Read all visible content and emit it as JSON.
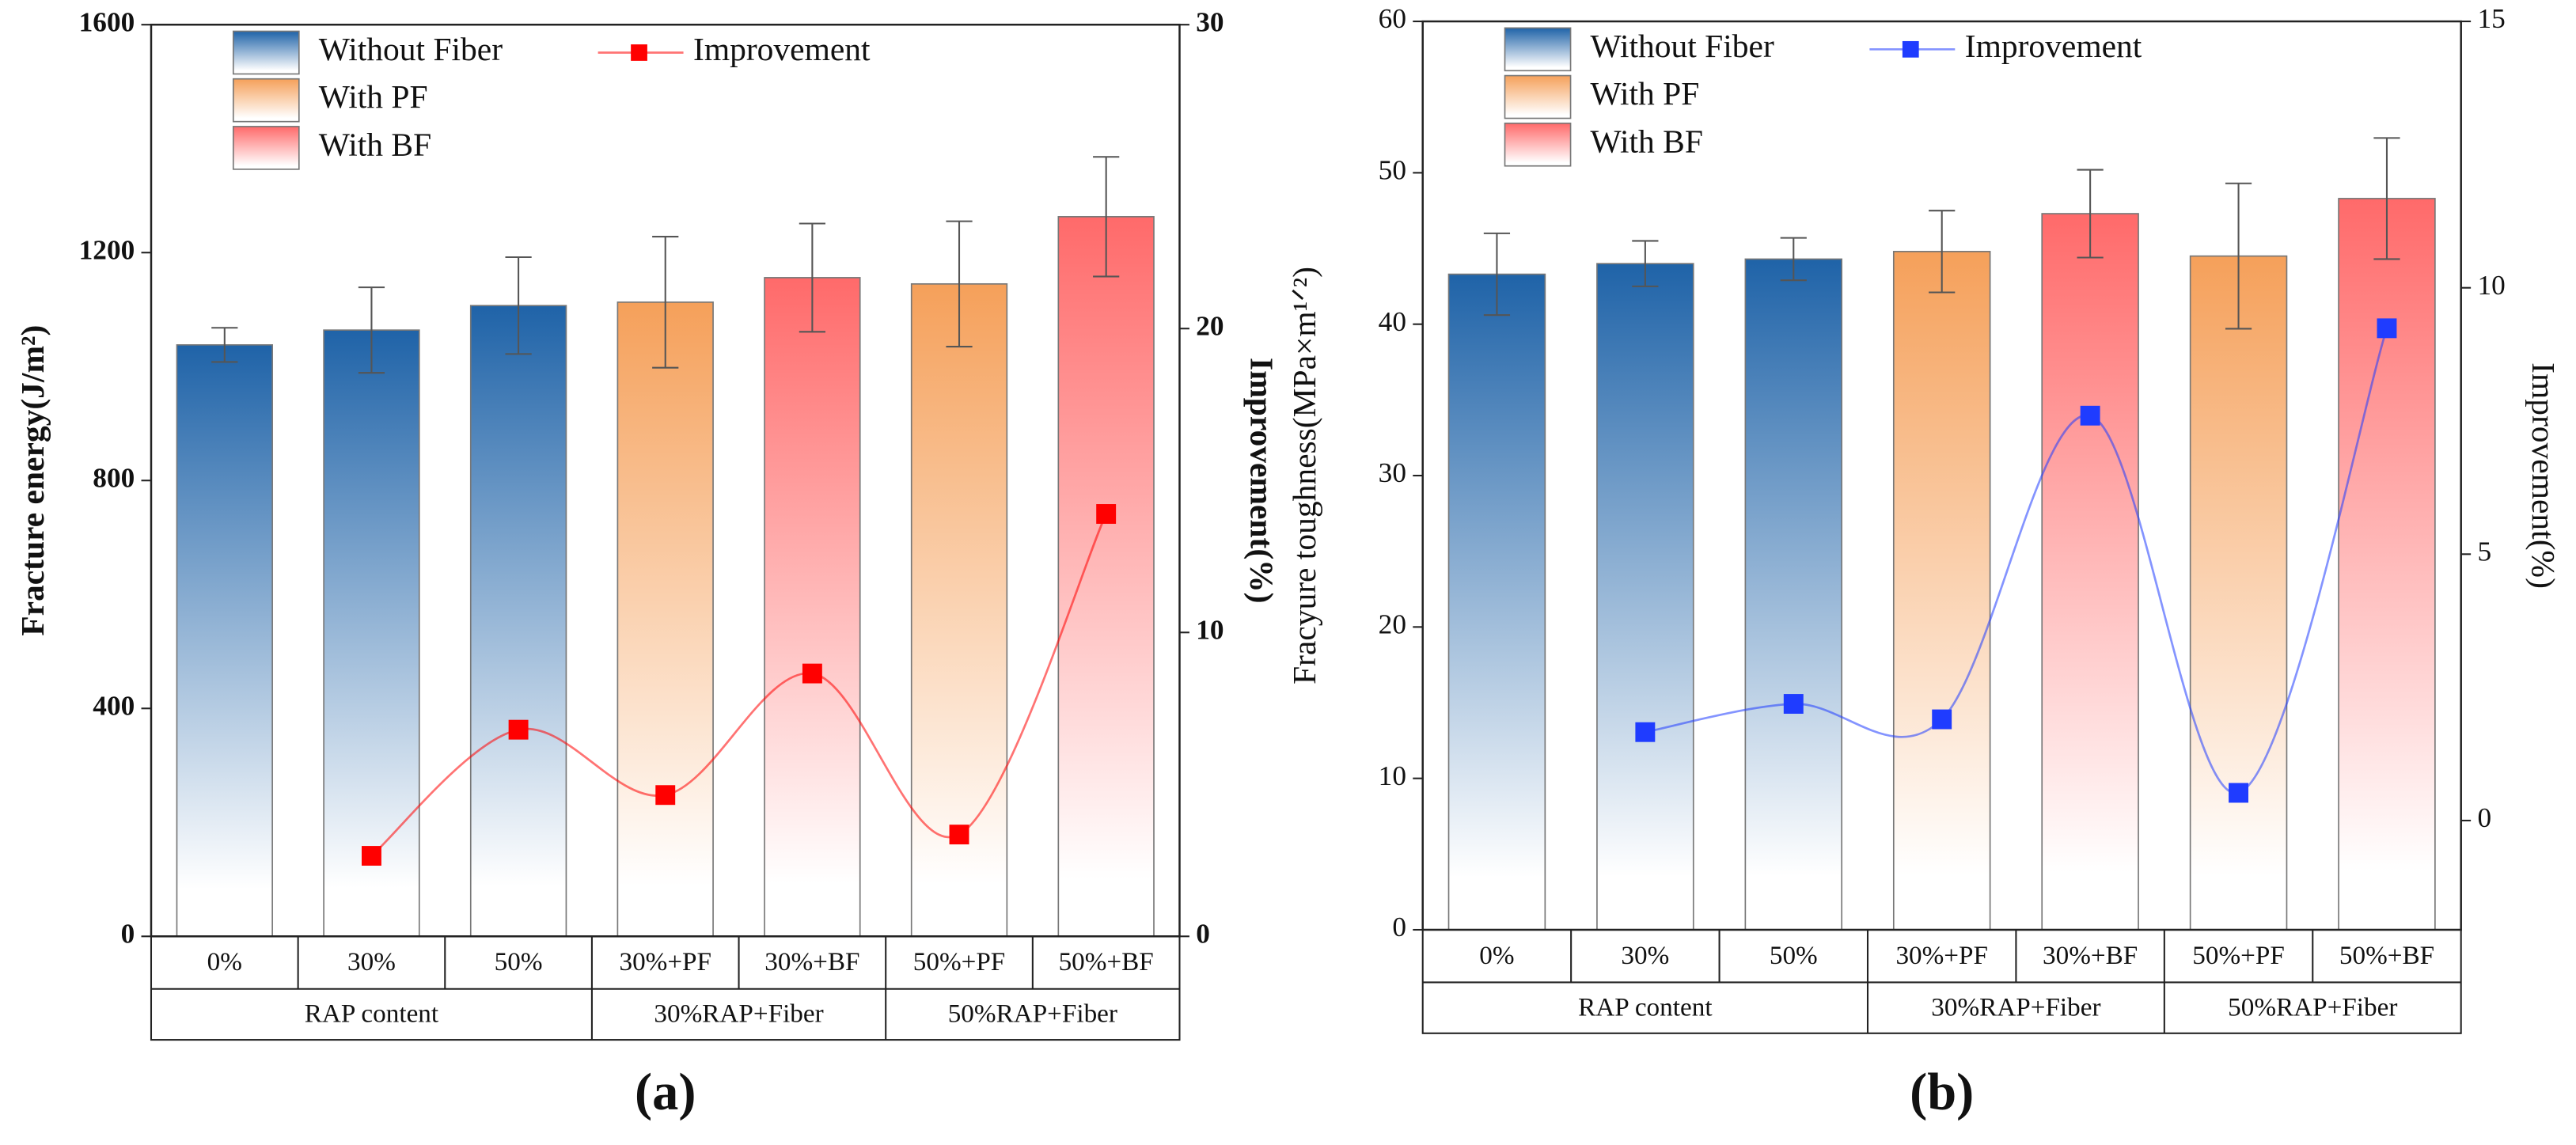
{
  "chart_data": [
    {
      "type": "bar",
      "panel_label": "(a)",
      "ylabel": "Fracture energy(J/m²)",
      "y2label": "Improvement(%)",
      "categories": [
        "0%",
        "30%",
        "50%",
        "30%+PF",
        "30%+BF",
        "50%+PF",
        "50%+BF"
      ],
      "groups": [
        {
          "label": "RAP content",
          "span": 3
        },
        {
          "label": "30%RAP+Fiber",
          "span": 2
        },
        {
          "label": "50%RAP+Fiber",
          "span": 2
        }
      ],
      "series": [
        {
          "name": "Without Fiber",
          "color": "#1f63a8",
          "values": [
            1038,
            1064,
            1107,
            null,
            null,
            null,
            null
          ],
          "errors": [
            30,
            75,
            85,
            null,
            null,
            null,
            null
          ]
        },
        {
          "name": "With PF",
          "color": "#f5a05a",
          "values": [
            null,
            null,
            null,
            1113,
            null,
            1145,
            null
          ],
          "errors": [
            null,
            null,
            null,
            115,
            null,
            110,
            null
          ]
        },
        {
          "name": "With BF",
          "color": "#ff6a6a",
          "values": [
            null,
            null,
            null,
            null,
            1156,
            null,
            1263
          ],
          "errors": [
            null,
            null,
            null,
            null,
            95,
            null,
            105
          ]
        },
        {
          "name": "Improvement",
          "color": "#ff0000",
          "axis": "y2",
          "values": [
            null,
            2.65,
            6.8,
            4.65,
            8.65,
            3.35,
            13.9
          ]
        }
      ],
      "ylim": [
        0,
        1600
      ],
      "yticks": [
        0,
        400,
        800,
        1200,
        1600
      ],
      "y2lim": [
        0,
        30
      ],
      "y2ticks": [
        0,
        10,
        20,
        30
      ],
      "legend": "upper left"
    },
    {
      "type": "bar",
      "panel_label": "(b)",
      "ylabel": "Fracyure toughness(MPa×m¹ᐟ²)",
      "y2label": "Improvement(%)",
      "categories": [
        "0%",
        "30%",
        "50%",
        "30%+PF",
        "30%+BF",
        "50%+PF",
        "50%+BF"
      ],
      "groups": [
        {
          "label": "RAP content",
          "span": 3
        },
        {
          "label": "30%RAP+Fiber",
          "span": 2
        },
        {
          "label": "50%RAP+Fiber",
          "span": 2
        }
      ],
      "series": [
        {
          "name": "Without Fiber",
          "color": "#1f63a8",
          "values": [
            43.3,
            44.0,
            44.3,
            null,
            null,
            null,
            null
          ],
          "errors": [
            2.7,
            1.5,
            1.4,
            null,
            null,
            null,
            null
          ]
        },
        {
          "name": "With PF",
          "color": "#f5a05a",
          "values": [
            null,
            null,
            null,
            44.8,
            null,
            44.5,
            null
          ],
          "errors": [
            null,
            null,
            null,
            2.7,
            null,
            4.8,
            null
          ]
        },
        {
          "name": "With BF",
          "color": "#ff6a6a",
          "values": [
            null,
            null,
            null,
            null,
            47.3,
            null,
            48.3
          ],
          "errors": [
            null,
            null,
            null,
            null,
            2.9,
            null,
            4.0
          ]
        },
        {
          "name": "Improvement",
          "color": "#1f3cff",
          "axis": "y2",
          "values": [
            null,
            1.66,
            2.19,
            1.9,
            7.6,
            0.52,
            9.24
          ]
        }
      ],
      "ylim": [
        0,
        60
      ],
      "yticks": [
        0,
        10,
        20,
        30,
        40,
        50,
        60
      ],
      "y2lim": [
        -2.05,
        15
      ],
      "y2ticks": [
        0,
        5,
        10,
        15
      ],
      "legend": "upper left"
    }
  ]
}
